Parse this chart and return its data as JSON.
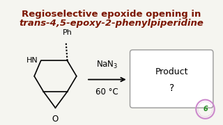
{
  "title_line1": "Regioselective epoxide opening in",
  "title_line2_italic": "trans",
  "title_line2_normal": "-4,5-epoxy-2-phenylpiperidine",
  "title_color": "#7B1500",
  "title_fontsize": 9.5,
  "bg_color": "#F5F5F0",
  "black": "#000000",
  "reagent_nan3": "$\\mathrm{NaN_3}$",
  "reagent_temp": "60 °C",
  "product_text1": "Product",
  "product_text2": "?",
  "watermark_color": "#CC88CC",
  "border_color": "#999999",
  "struct_color": "#000000",
  "label_Ph": "Ph",
  "label_HN": "HN",
  "label_O": "O"
}
